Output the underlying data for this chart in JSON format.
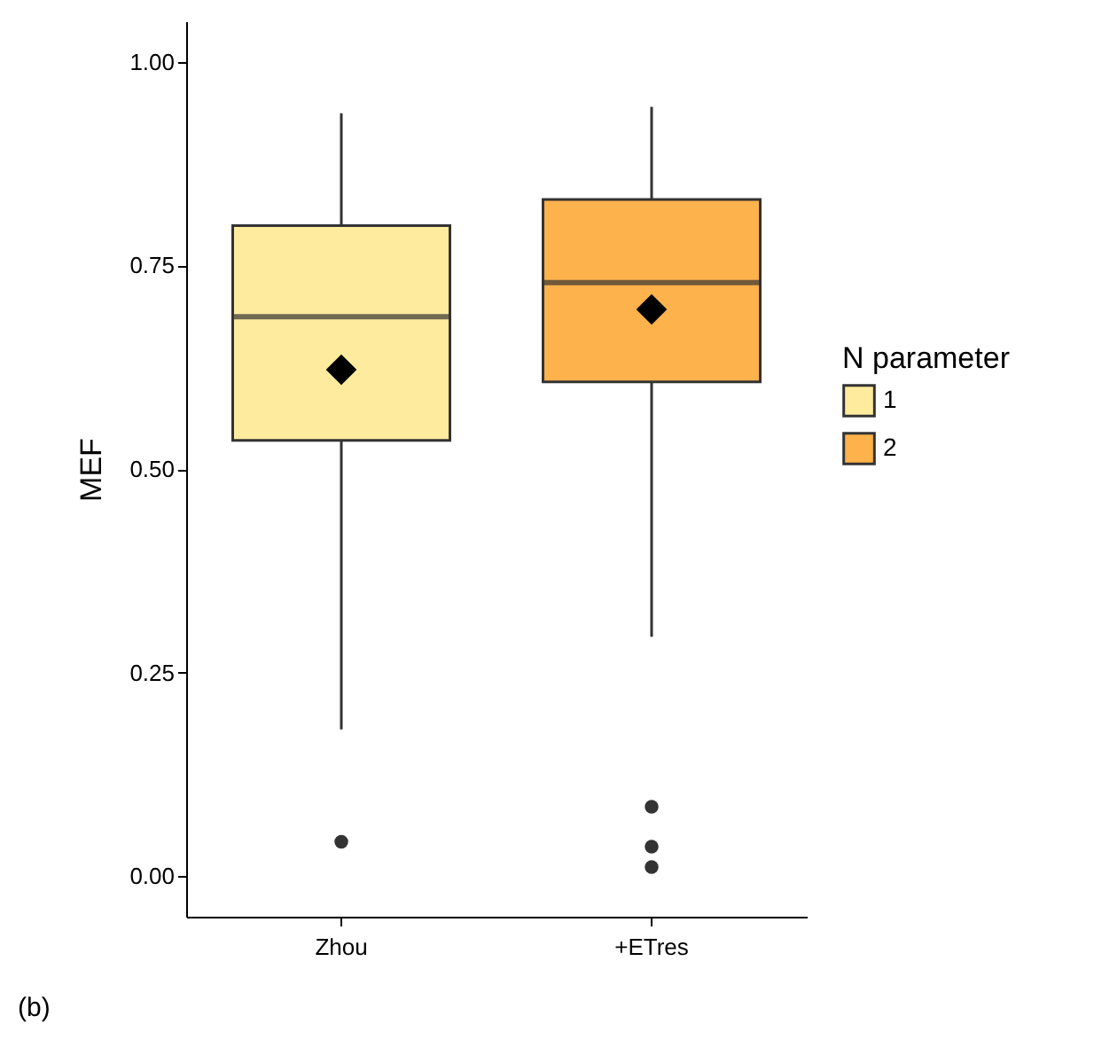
{
  "chart_data": {
    "type": "box",
    "categories": [
      "Zhou",
      "+ETres"
    ],
    "ylabel": "MEF",
    "legend_title": "N parameter",
    "legend": "right",
    "grid": false,
    "ylim": [
      -0.05,
      1.05
    ],
    "yticks": [
      {
        "value": 0,
        "label": "0.00"
      },
      {
        "value": 0.25,
        "label": "0.25"
      },
      {
        "value": 0.5,
        "label": "0.50"
      },
      {
        "value": 0.75,
        "label": "0.75"
      },
      {
        "value": 1,
        "label": "1.00"
      }
    ],
    "series": [
      {
        "name": "1",
        "color": "#feeb9e",
        "boxes": [
          {
            "low": 0.18,
            "q1": 0.535,
            "median": 0.687,
            "q3": 0.799,
            "high": 0.937,
            "mean": 0.622,
            "outliers": [
              0.042
            ]
          },
          null
        ]
      },
      {
        "name": "2",
        "color": "#feb24c",
        "boxes": [
          null,
          {
            "low": 0.294,
            "q1": 0.607,
            "median": 0.729,
            "q3": 0.831,
            "high": 0.945,
            "mean": 0.696,
            "outliers": [
              0.085,
              0.036,
              0.011
            ]
          }
        ]
      }
    ],
    "annotations": [
      "(b)"
    ]
  }
}
